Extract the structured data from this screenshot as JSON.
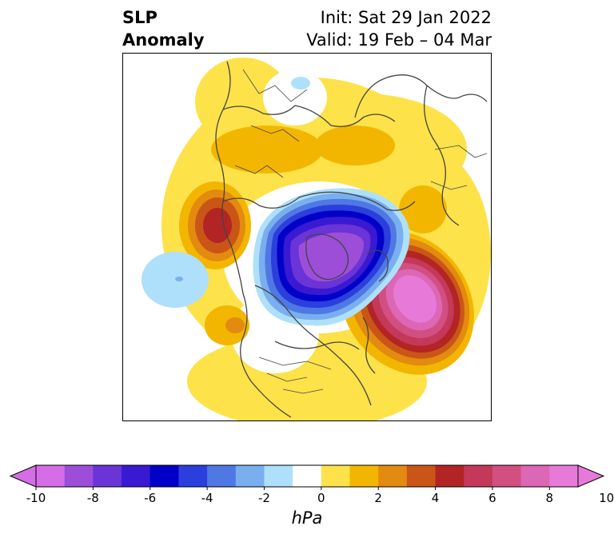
{
  "title": {
    "left_line1": "SLP",
    "left_line2": "Anomaly",
    "right_line1": "Init: Sat 29 Jan 2022",
    "right_line2": "Valid: 19 Feb – 04 Mar"
  },
  "colorbar": {
    "unit": "hPa",
    "tick_labels": [
      "-10",
      "-8",
      "-6",
      "-4",
      "-2",
      "0",
      "2",
      "4",
      "6",
      "8",
      "10"
    ],
    "levels": [
      -10,
      -9,
      -8,
      -7,
      -6,
      -5,
      -4,
      -3,
      -2,
      -1,
      1,
      2,
      3,
      4,
      5,
      6,
      7,
      8,
      9,
      10
    ],
    "colors": [
      "#d56ee6",
      "#9d4ed9",
      "#6a34d6",
      "#3a19d3",
      "#0000c8",
      "#2a3fdc",
      "#5078e4",
      "#7aafef",
      "#aee0fb",
      "#ffffff",
      "#fde24a",
      "#f3b600",
      "#e38a10",
      "#c95616",
      "#b32424",
      "#c4385a",
      "#d24f82",
      "#dc67b4",
      "#e77ad8"
    ],
    "extend_low_color": "#d56ee6",
    "extend_high_color": "#e77ad8"
  },
  "map": {
    "projection": "north-polar-stereographic",
    "field": "sea-level-pressure-anomaly"
  }
}
